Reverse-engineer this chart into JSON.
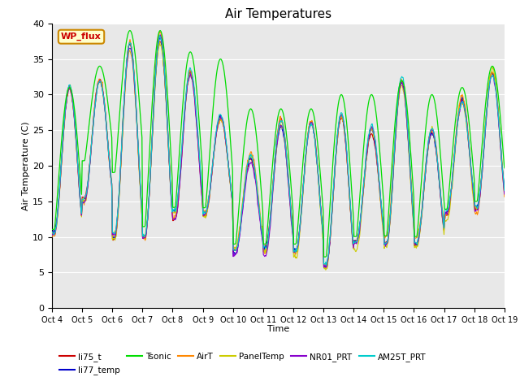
{
  "title": "Air Temperatures",
  "xlabel": "Time",
  "ylabel": "Air Temperature (C)",
  "ylim": [
    0,
    40
  ],
  "bg_color": "#e8e8e8",
  "fig_color": "#ffffff",
  "series_colors": {
    "li75_t": "#cc0000",
    "li77_temp": "#0000cc",
    "Tsonic": "#00dd00",
    "AirT": "#ff8800",
    "PanelTemp": "#cccc00",
    "NR01_PRT": "#8800cc",
    "AM25T_PRT": "#00cccc"
  },
  "wp_flux_box": {
    "text": "WP_flux",
    "bg": "#ffffcc",
    "border": "#cc8800",
    "text_color": "#cc0000"
  },
  "x_tick_labels": [
    "Oct 4",
    "Oct 5",
    "Oct 6",
    "Oct 7",
    "Oct 8",
    "Oct 9",
    "Oct 10",
    "Oct 11",
    "Oct 12",
    "Oct 13",
    "Oct 14",
    "Oct 15",
    "Oct 16",
    "Oct 17",
    "Oct 18",
    "Oct 19"
  ],
  "yticks": [
    0,
    5,
    10,
    15,
    20,
    25,
    30,
    35,
    40
  ],
  "n_days": 15,
  "n_per_day": 48,
  "day_mins": [
    10,
    15,
    10,
    10,
    13,
    13,
    8,
    8,
    8,
    6,
    9,
    9,
    9,
    13,
    14
  ],
  "day_maxs": [
    31,
    32,
    37,
    38,
    33,
    27,
    21,
    26,
    26,
    27,
    25,
    32,
    25,
    29,
    33
  ],
  "tsonic_extra_min": [
    0,
    5,
    8,
    0,
    0,
    0,
    0,
    0,
    0,
    0,
    0,
    0,
    0,
    0,
    0
  ],
  "tsonic_extra_max": [
    0,
    2,
    2,
    1,
    3,
    8,
    7,
    2,
    2,
    3,
    5,
    0,
    5,
    2,
    1
  ]
}
